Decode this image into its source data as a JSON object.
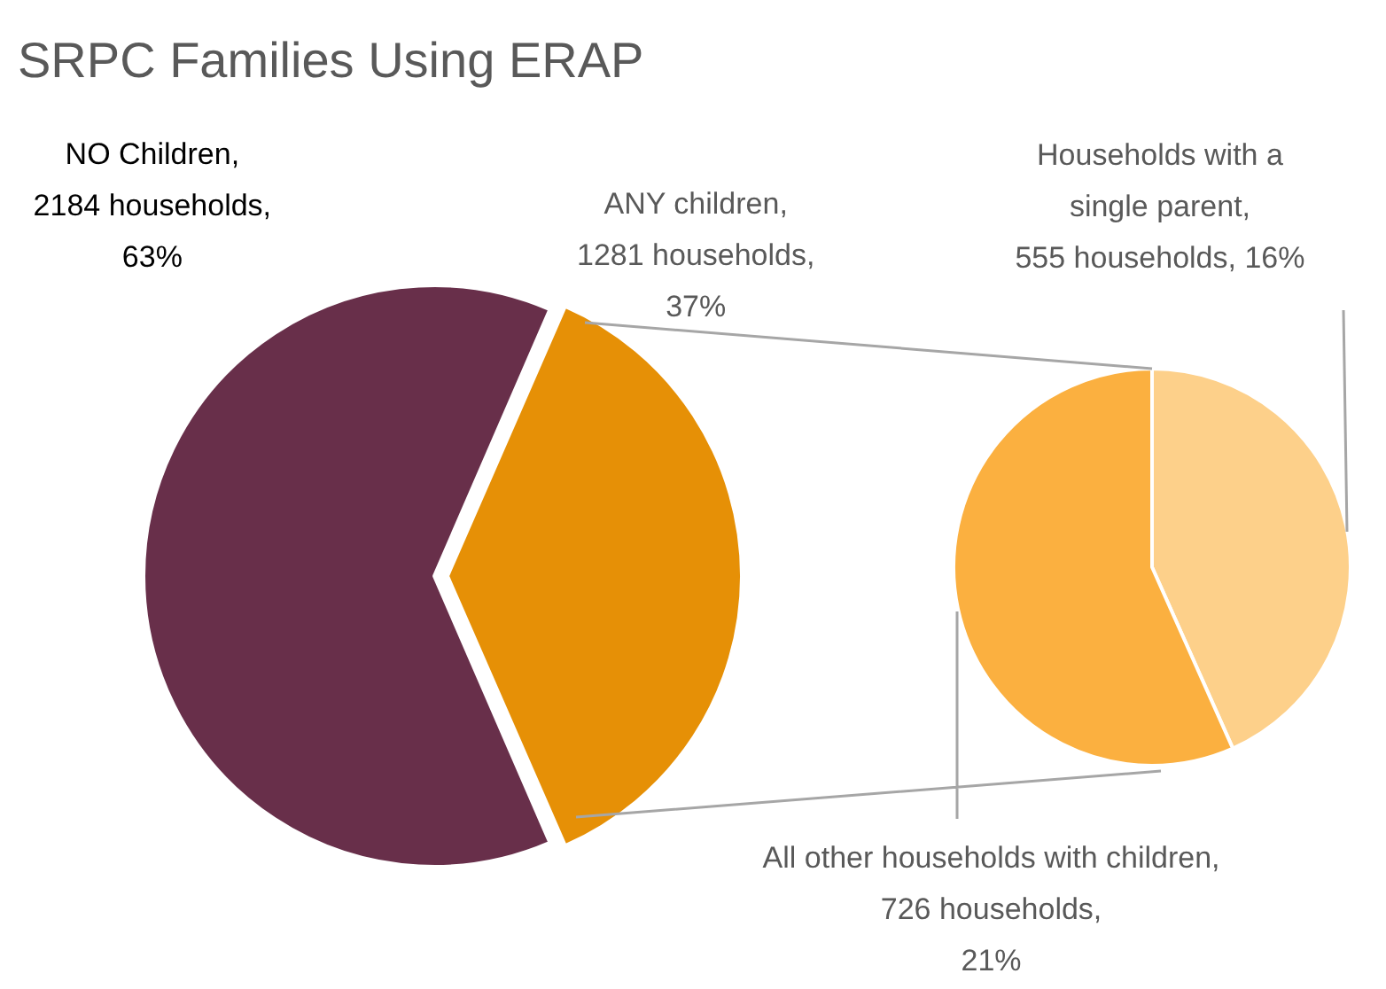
{
  "chart_data": [
    {
      "type": "pie",
      "title": "SRPC Families Using ERAP",
      "categories": [
        "NO Children",
        "ANY children"
      ],
      "values": [
        2184,
        1281
      ],
      "colors": [
        "#682f4a",
        "#e69006"
      ],
      "value_labels": [
        ", 2184 households, 63%",
        ", 1281 households, 37%"
      ],
      "legend": false
    },
    {
      "type": "pie",
      "categories": [
        "Households with a single parent",
        "All other households with children"
      ],
      "values": [
        555,
        726
      ],
      "colors": [
        "#fdd08a",
        "#fbb040"
      ],
      "value_labels": [
        ", 555 households, 16%",
        ", 726 households, 21%"
      ],
      "legend": false
    }
  ]
}
